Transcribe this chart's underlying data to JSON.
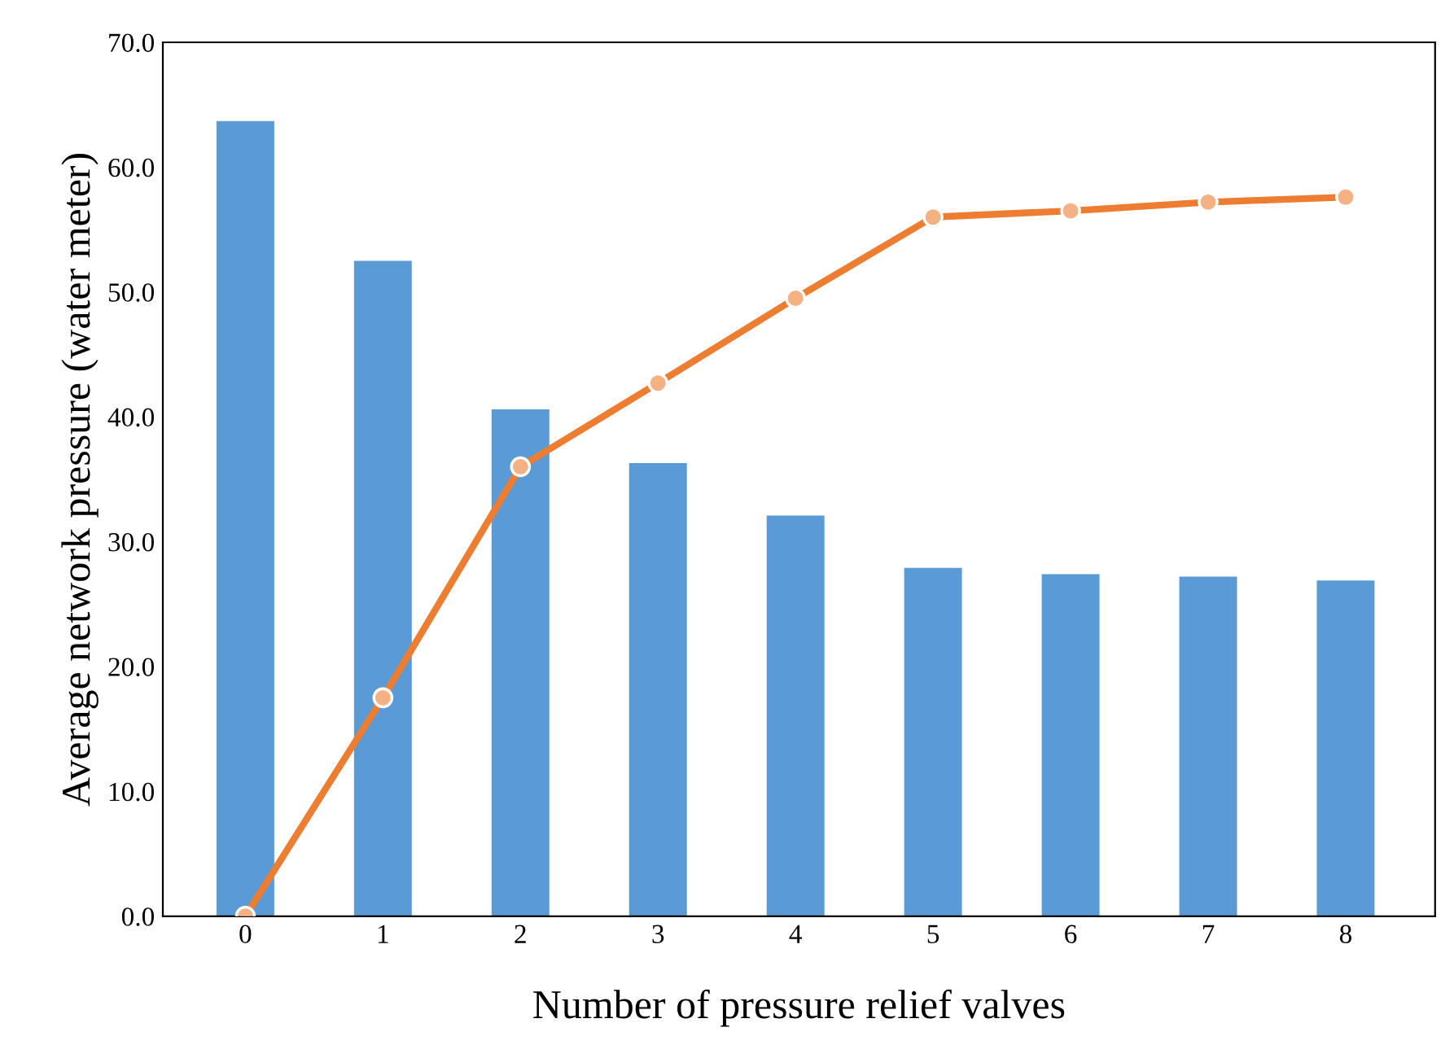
{
  "chart_data": {
    "type": "bar",
    "xlabel": "Number of pressure relief valves",
    "ylabel": "Average network pressure (water meter)",
    "categories": [
      "0",
      "1",
      "2",
      "3",
      "4",
      "5",
      "6",
      "7",
      "8"
    ],
    "series": [
      {
        "color": "#5b9bd5",
        "values": [
          63.7,
          52.5,
          40.6,
          36.3,
          32.1,
          27.9,
          27.4,
          27.2,
          26.9
        ]
      },
      {
        "type": "line",
        "color": "#ed7d31",
        "marker": "circle",
        "line_style": "solid",
        "values": [
          0,
          17.5,
          36.0,
          42.7,
          49.5,
          56.0,
          56.5,
          57.2,
          57.6
        ]
      }
    ],
    "ylim": [
      0,
      70
    ],
    "yticks": [
      {
        "value": 0,
        "label": "0.0"
      },
      {
        "value": 10,
        "label": "10.0"
      },
      {
        "value": 20,
        "label": "20.0"
      },
      {
        "value": 30,
        "label": "30.0"
      },
      {
        "value": 40,
        "label": "40.0"
      },
      {
        "value": 50,
        "label": "50.0"
      },
      {
        "value": 60,
        "label": "60.0"
      },
      {
        "value": 70,
        "label": "70.0"
      }
    ],
    "grid": false,
    "legend": false
  }
}
